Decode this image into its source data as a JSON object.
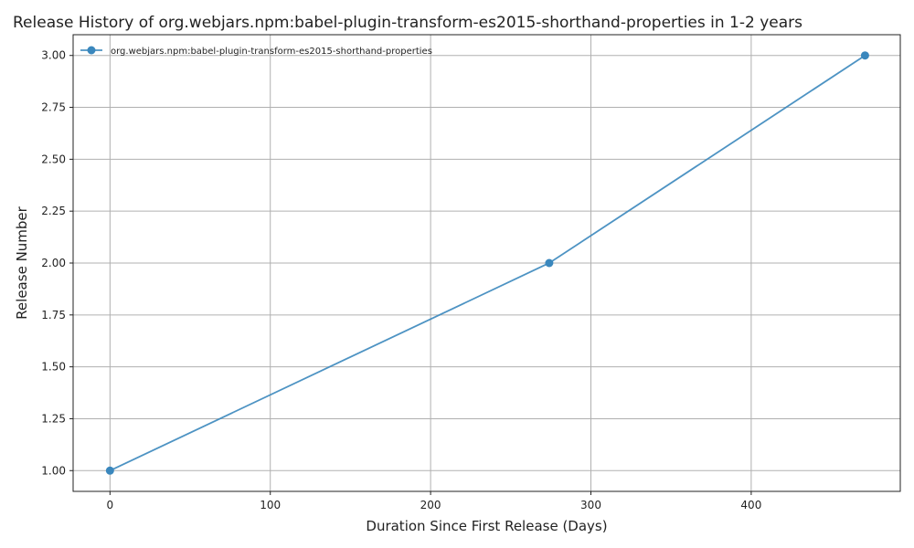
{
  "chart_data": {
    "type": "line",
    "title": "Release History of org.webjars.npm:babel-plugin-transform-es2015-shorthand-properties in 1-2 years",
    "xlabel": "Duration Since First Release (Days)",
    "ylabel": "Release Number",
    "xlim": [
      -23,
      493
    ],
    "ylim": [
      0.9,
      3.1
    ],
    "xticks": [
      0,
      100,
      200,
      300,
      400
    ],
    "yticks": [
      1.0,
      1.25,
      1.5,
      1.75,
      2.0,
      2.25,
      2.5,
      2.75,
      3.0
    ],
    "xtick_labels": [
      "0",
      "100",
      "200",
      "300",
      "400"
    ],
    "ytick_labels": [
      "1.00",
      "1.25",
      "1.50",
      "1.75",
      "2.00",
      "2.25",
      "2.50",
      "2.75",
      "3.00"
    ],
    "grid": true,
    "legend_position": "top-left",
    "series": [
      {
        "name": "org.webjars.npm:babel-plugin-transform-es2015-shorthand-properties",
        "color": "#3a87bd",
        "marker": "circle",
        "x": [
          0,
          274,
          471
        ],
        "y": [
          1,
          2,
          3
        ]
      }
    ]
  }
}
